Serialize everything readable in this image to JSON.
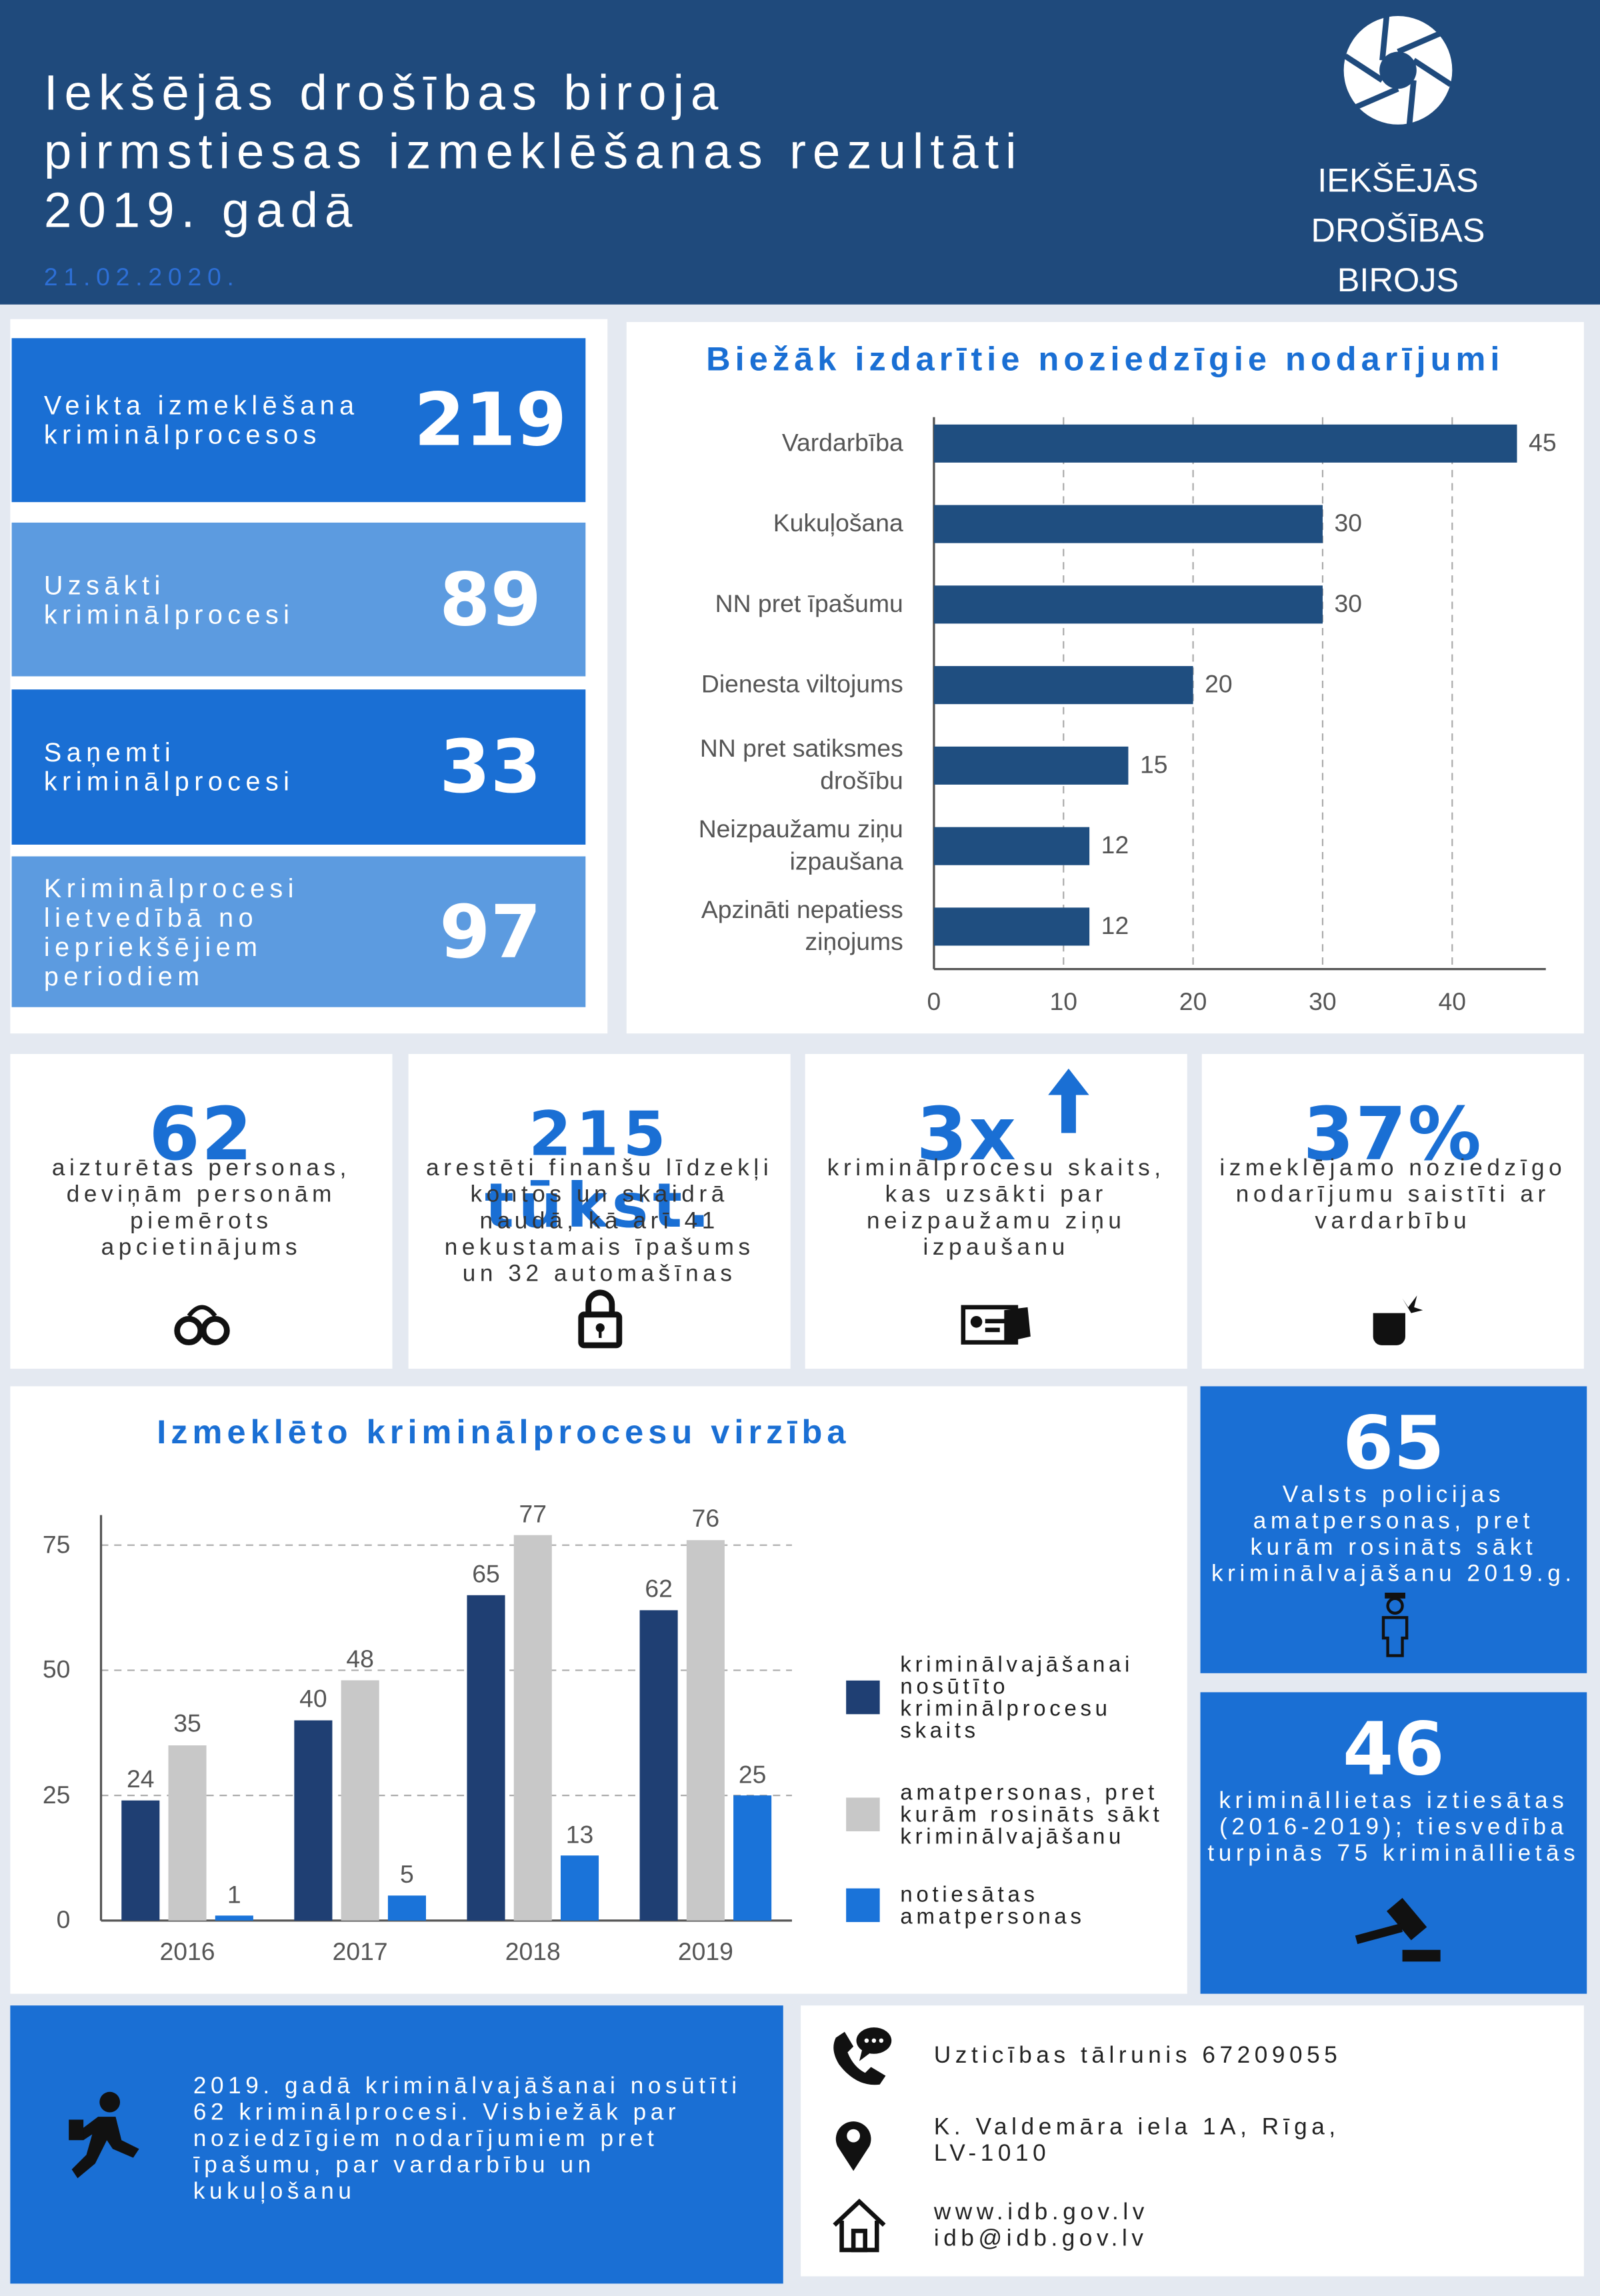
{
  "header": {
    "title": [
      "Iekšējās drošības biroja",
      "pirmstiesas izmeklēšanas rezultāti",
      "2019. gadā"
    ],
    "date": "21.02.2020.",
    "logo_text": [
      "IEKŠĒJĀS",
      "DROŠĪBAS",
      "BIROJS"
    ]
  },
  "stats": [
    {
      "label": "Veikta izmeklēšana kriminālprocesos",
      "value": 219
    },
    {
      "label": "Uzsākti kriminālprocesi",
      "value": 89
    },
    {
      "label": "Saņemti kriminālprocesi",
      "value": 33
    },
    {
      "label": "Kriminālprocesi lietvedībā no iepriekšējiem periodiem",
      "value": 97
    }
  ],
  "highlights": [
    {
      "value": "62",
      "text": "aizturētas personas, deviņām personām piemērots apcietinājums"
    },
    {
      "value": "215 tūkst.",
      "text": "arestēti finanšu līdzekļi kontos un skaidrā naudā, kā arī 41 nekustamais īpašums un 32 automašīnas"
    },
    {
      "value": "3x",
      "text": "kriminālprocesu skaits, kas uzsākti par neizpaužamu ziņu izpaušanu"
    },
    {
      "value": "37%",
      "text": "izmeklējamo noziedzīgo nodarījumu saistīti ar vardarbību"
    }
  ],
  "side_stats": [
    {
      "value": 65,
      "text": "Valsts policijas amatpersonas, pret kurām rosināts sākt kriminālvajāšanu 2019.g."
    },
    {
      "value": 46,
      "text": "krimināllietas iztiesātas (2016-2019); tiesvedība turpinās 75 krimināllietās"
    }
  ],
  "footer": {
    "summary": "2019. gadā kriminālvajāšanai nosūtīti 62 kriminālprocesi. Visbiežāk par noziedzīgiem nodarījumiem pret īpašumu, par vardarbību un kukuļošanu",
    "phone": "Uzticības tālrunis 67209055",
    "address": "K. Valdemāra iela 1A, Rīga, LV-1010",
    "web": "www.idb.gov.lv",
    "email": "idb@idb.gov.lv"
  },
  "chart_data": [
    {
      "type": "bar",
      "orientation": "horizontal",
      "title": "Biežāk izdarītie noziedzīgie nodarījumi",
      "categories": [
        "Vardarbība",
        "Kukuļošana",
        "NN pret īpašumu",
        "Dienesta viltojums",
        "NN pret satiksmes drošību",
        "Neizpaužamu ziņu izpaušana",
        "Apzināti nepatiess ziņojums"
      ],
      "values": [
        45,
        30,
        30,
        20,
        15,
        12,
        12
      ],
      "color": "#1f4e80",
      "xlim": [
        0,
        47
      ],
      "xticks": [
        0,
        10,
        20,
        30,
        40
      ],
      "grid": true
    },
    {
      "type": "grouped_bar",
      "title": "Izmeklēto kriminālprocesu virzība",
      "categories": [
        "2016",
        "2017",
        "2018",
        "2019"
      ],
      "series": [
        {
          "name": "kriminālvajāšanai nosūtīto kriminālprocesu skaits",
          "color": "#1f3f73",
          "values": [
            24,
            40,
            65,
            62
          ]
        },
        {
          "name": "amatpersonas, pret kurām rosināts sākt kriminālvajāšanu",
          "color": "#c8c8c8",
          "values": [
            35,
            48,
            77,
            76
          ]
        },
        {
          "name": "notiesātas amatpersonas",
          "color": "#1a73d9",
          "values": [
            1,
            5,
            13,
            25
          ]
        }
      ],
      "ylim": [
        0,
        81
      ],
      "yticks": [
        0,
        25,
        50,
        75
      ],
      "grid": true
    }
  ]
}
